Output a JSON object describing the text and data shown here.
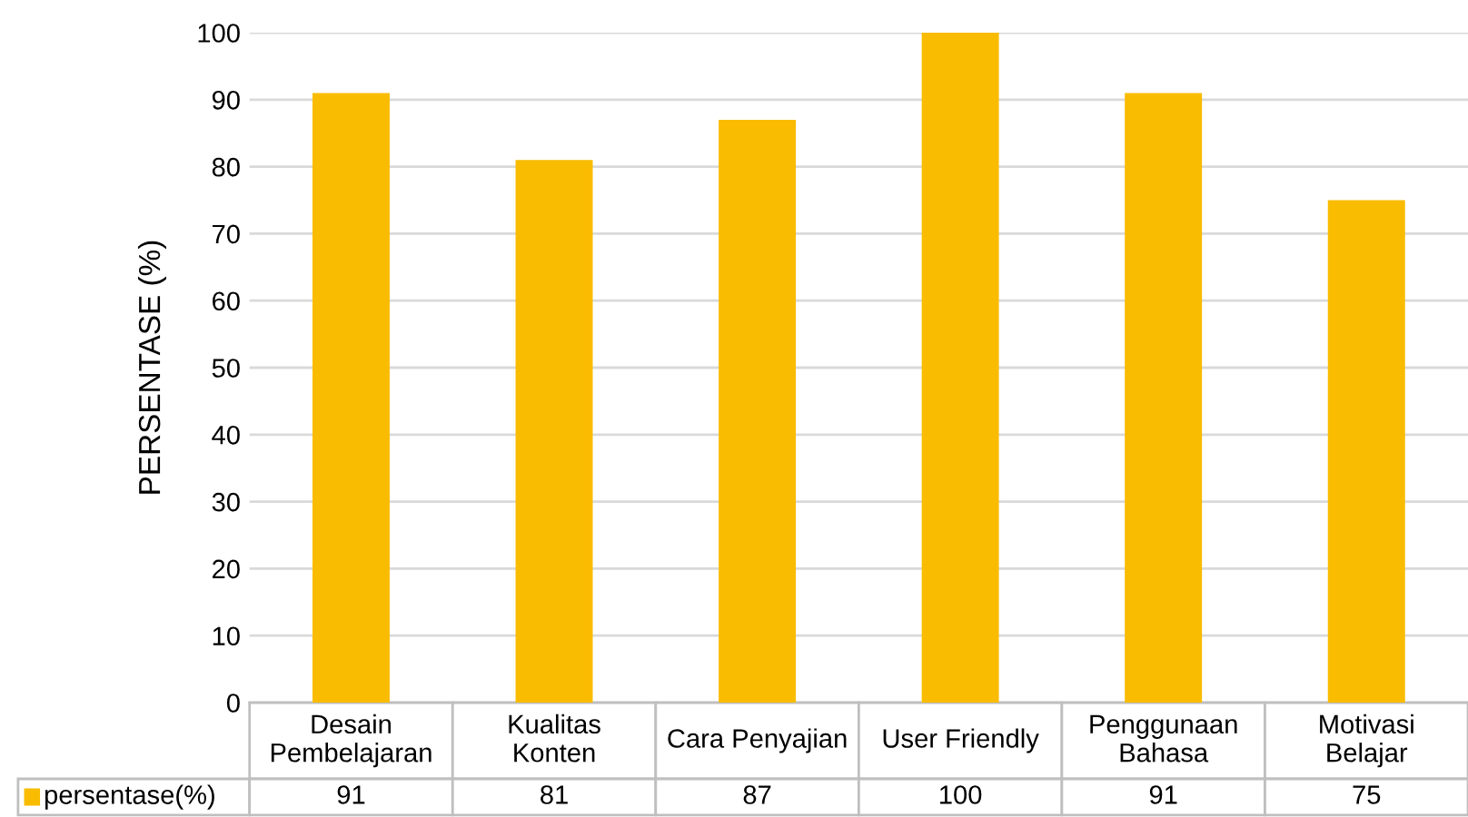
{
  "chart_data": {
    "type": "bar",
    "ylabel": "PERSENTASE (%)",
    "categories": [
      "Desain Pembelajaran",
      "Kualitas Konten",
      "Cara Penyajian",
      "User Friendly",
      "Penggunaan Bahasa",
      "Motivasi Belajar"
    ],
    "series": [
      {
        "name": "persentase(%)",
        "color": "#f9bc00",
        "values": [
          91,
          81,
          87,
          100,
          91,
          75
        ]
      }
    ],
    "ylim": [
      0,
      100
    ],
    "yticks": [
      0,
      10,
      20,
      30,
      40,
      50,
      60,
      70,
      80,
      90,
      100
    ],
    "grid": "y",
    "legend": "bottom",
    "data_labels": true
  }
}
